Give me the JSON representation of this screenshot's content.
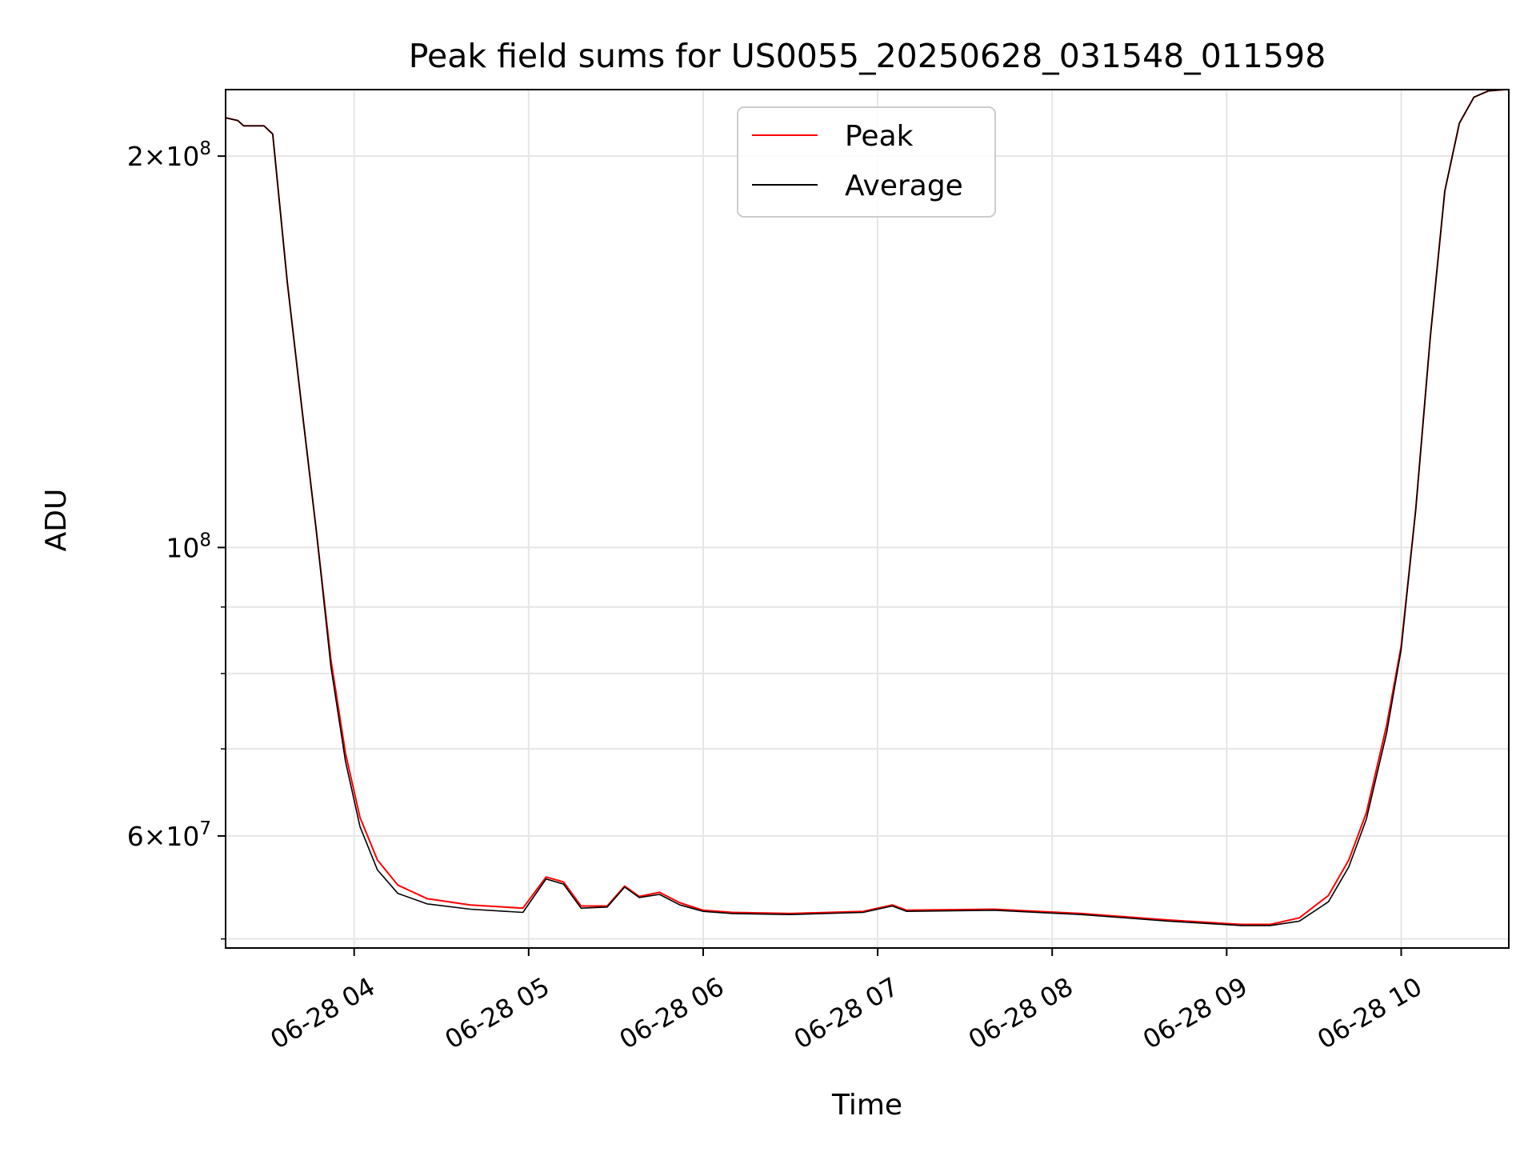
{
  "chart_data": {
    "type": "line",
    "title": "Peak field sums for US0055_20250628_031548_011598",
    "xlabel": "Time",
    "ylabel": "ADU",
    "y_scale": "log",
    "grid": true,
    "legend_position": "upper-center",
    "x_ticks": [
      "06-28 04",
      "06-28 05",
      "06-28 06",
      "06-28 07",
      "06-28 08",
      "06-28 09",
      "06-28 10"
    ],
    "y_tick_labels": [
      {
        "value": 200000000,
        "base": "2×10",
        "exp": "8"
      },
      {
        "value": 100000000,
        "base": "10",
        "exp": "8"
      },
      {
        "value": 60000000,
        "base": "6×10",
        "exp": "7"
      }
    ],
    "y_minor_ticks": [
      50000000,
      70000000,
      80000000,
      90000000
    ],
    "xlim": [
      "2025-06-28 03:15:48",
      "2025-06-28 10:37:00"
    ],
    "ylim": [
      49200000,
      225000000
    ],
    "series": [
      {
        "name": "Peak",
        "color": "#ff0000",
        "points": [
          [
            "2025-06-28 03:16:00",
            214000000
          ],
          [
            "2025-06-28 03:20:00",
            213000000
          ],
          [
            "2025-06-28 03:22:00",
            211000000
          ],
          [
            "2025-06-28 03:29:00",
            211000000
          ],
          [
            "2025-06-28 03:32:00",
            208000000
          ],
          [
            "2025-06-28 03:37:00",
            160000000
          ],
          [
            "2025-06-28 03:42:00",
            128000000
          ],
          [
            "2025-06-28 03:47:00",
            103000000
          ],
          [
            "2025-06-28 03:52:00",
            82000000
          ],
          [
            "2025-06-28 03:57:00",
            69500000
          ],
          [
            "2025-06-28 04:02:00",
            62000000
          ],
          [
            "2025-06-28 04:08:00",
            57500000
          ],
          [
            "2025-06-28 04:15:00",
            55000000
          ],
          [
            "2025-06-28 04:25:00",
            53700000
          ],
          [
            "2025-06-28 04:40:00",
            53100000
          ],
          [
            "2025-06-28 04:58:00",
            52800000
          ],
          [
            "2025-06-28 05:06:00",
            55800000
          ],
          [
            "2025-06-28 05:12:00",
            55300000
          ],
          [
            "2025-06-28 05:18:00",
            53000000
          ],
          [
            "2025-06-28 05:27:00",
            53000000
          ],
          [
            "2025-06-28 05:33:00",
            54900000
          ],
          [
            "2025-06-28 05:38:00",
            53900000
          ],
          [
            "2025-06-28 05:45:00",
            54300000
          ],
          [
            "2025-06-28 05:52:00",
            53300000
          ],
          [
            "2025-06-28 06:00:00",
            52600000
          ],
          [
            "2025-06-28 06:10:00",
            52400000
          ],
          [
            "2025-06-28 06:30:00",
            52300000
          ],
          [
            "2025-06-28 06:55:00",
            52500000
          ],
          [
            "2025-06-28 07:05:00",
            53100000
          ],
          [
            "2025-06-28 07:10:00",
            52600000
          ],
          [
            "2025-06-28 07:40:00",
            52700000
          ],
          [
            "2025-06-28 08:10:00",
            52300000
          ],
          [
            "2025-06-28 08:40:00",
            51700000
          ],
          [
            "2025-06-28 09:05:00",
            51300000
          ],
          [
            "2025-06-28 09:15:00",
            51300000
          ],
          [
            "2025-06-28 09:25:00",
            51900000
          ],
          [
            "2025-06-28 09:35:00",
            54000000
          ],
          [
            "2025-06-28 09:42:00",
            57500000
          ],
          [
            "2025-06-28 09:48:00",
            62500000
          ],
          [
            "2025-06-28 09:55:00",
            73000000
          ],
          [
            "2025-06-28 10:00:00",
            84000000
          ],
          [
            "2025-06-28 10:05:00",
            107000000
          ],
          [
            "2025-06-28 10:10:00",
            145000000
          ],
          [
            "2025-06-28 10:15:00",
            188000000
          ],
          [
            "2025-06-28 10:20:00",
            212000000
          ],
          [
            "2025-06-28 10:25:00",
            222000000
          ],
          [
            "2025-06-28 10:30:00",
            224500000
          ],
          [
            "2025-06-28 10:36:00",
            225000000
          ]
        ]
      },
      {
        "name": "Average",
        "color": "#000000",
        "points": [
          [
            "2025-06-28 03:16:00",
            214000000
          ],
          [
            "2025-06-28 03:20:00",
            213000000
          ],
          [
            "2025-06-28 03:22:00",
            211000000
          ],
          [
            "2025-06-28 03:29:00",
            211000000
          ],
          [
            "2025-06-28 03:32:00",
            208000000
          ],
          [
            "2025-06-28 03:37:00",
            160000000
          ],
          [
            "2025-06-28 03:42:00",
            128000000
          ],
          [
            "2025-06-28 03:47:00",
            103000000
          ],
          [
            "2025-06-28 03:52:00",
            81000000
          ],
          [
            "2025-06-28 03:57:00",
            68500000
          ],
          [
            "2025-06-28 04:02:00",
            61000000
          ],
          [
            "2025-06-28 04:08:00",
            56500000
          ],
          [
            "2025-06-28 04:15:00",
            54200000
          ],
          [
            "2025-06-28 04:25:00",
            53200000
          ],
          [
            "2025-06-28 04:40:00",
            52700000
          ],
          [
            "2025-06-28 04:58:00",
            52400000
          ],
          [
            "2025-06-28 05:06:00",
            55600000
          ],
          [
            "2025-06-28 05:12:00",
            55100000
          ],
          [
            "2025-06-28 05:18:00",
            52800000
          ],
          [
            "2025-06-28 05:27:00",
            52900000
          ],
          [
            "2025-06-28 05:33:00",
            54800000
          ],
          [
            "2025-06-28 05:38:00",
            53800000
          ],
          [
            "2025-06-28 05:45:00",
            54100000
          ],
          [
            "2025-06-28 05:52:00",
            53100000
          ],
          [
            "2025-06-28 06:00:00",
            52500000
          ],
          [
            "2025-06-28 06:10:00",
            52300000
          ],
          [
            "2025-06-28 06:30:00",
            52200000
          ],
          [
            "2025-06-28 06:55:00",
            52400000
          ],
          [
            "2025-06-28 07:05:00",
            53000000
          ],
          [
            "2025-06-28 07:10:00",
            52500000
          ],
          [
            "2025-06-28 07:40:00",
            52600000
          ],
          [
            "2025-06-28 08:10:00",
            52200000
          ],
          [
            "2025-06-28 08:40:00",
            51600000
          ],
          [
            "2025-06-28 09:05:00",
            51200000
          ],
          [
            "2025-06-28 09:15:00",
            51200000
          ],
          [
            "2025-06-28 09:25:00",
            51600000
          ],
          [
            "2025-06-28 09:35:00",
            53400000
          ],
          [
            "2025-06-28 09:42:00",
            56800000
          ],
          [
            "2025-06-28 09:48:00",
            61800000
          ],
          [
            "2025-06-28 09:55:00",
            72000000
          ],
          [
            "2025-06-28 10:00:00",
            83500000
          ],
          [
            "2025-06-28 10:05:00",
            107000000
          ],
          [
            "2025-06-28 10:10:00",
            145000000
          ],
          [
            "2025-06-28 10:15:00",
            188000000
          ],
          [
            "2025-06-28 10:20:00",
            212000000
          ],
          [
            "2025-06-28 10:25:00",
            222000000
          ],
          [
            "2025-06-28 10:30:00",
            224500000
          ],
          [
            "2025-06-28 10:36:00",
            225000000
          ]
        ]
      }
    ]
  }
}
